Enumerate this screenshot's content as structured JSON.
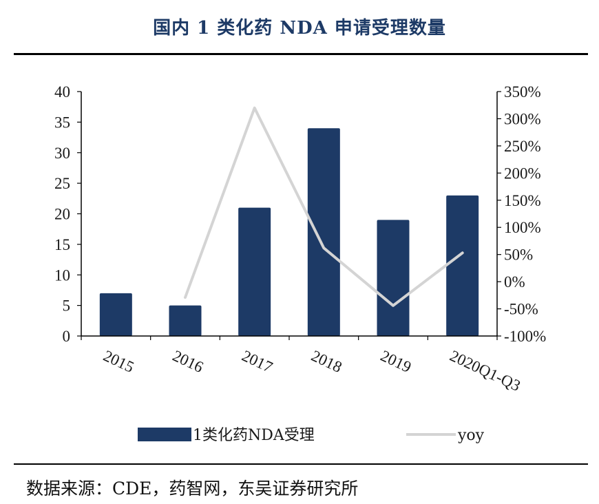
{
  "header": {
    "title": "国内 1 类化药 NDA 申请受理数量"
  },
  "footer": {
    "source": "数据来源：CDE，药智网，东吴证券研究所"
  },
  "chart_data": {
    "type": "bar",
    "categories": [
      "2015",
      "2016",
      "2017",
      "2018",
      "2019",
      "2020Q1-Q3"
    ],
    "series": [
      {
        "name": "1类化药NDA受理",
        "type": "bar",
        "axis": "left",
        "color": "#1d3a66",
        "values": [
          7,
          5,
          21,
          34,
          19,
          23
        ]
      },
      {
        "name": "yoy",
        "type": "line",
        "axis": "right",
        "color": "#d4d4d4",
        "values": [
          null,
          -29,
          320,
          62,
          -44,
          53
        ]
      }
    ],
    "y_left": {
      "min": 0,
      "max": 40,
      "ticks": [
        "0",
        "5",
        "10",
        "15",
        "20",
        "25",
        "30",
        "35",
        "40"
      ]
    },
    "y_right": {
      "min": -100,
      "max": 350,
      "ticks": [
        "-100%",
        "-50%",
        "0%",
        "50%",
        "100%",
        "150%",
        "200%",
        "250%",
        "300%",
        "350%"
      ]
    },
    "grid": false,
    "legend_position": "bottom"
  }
}
